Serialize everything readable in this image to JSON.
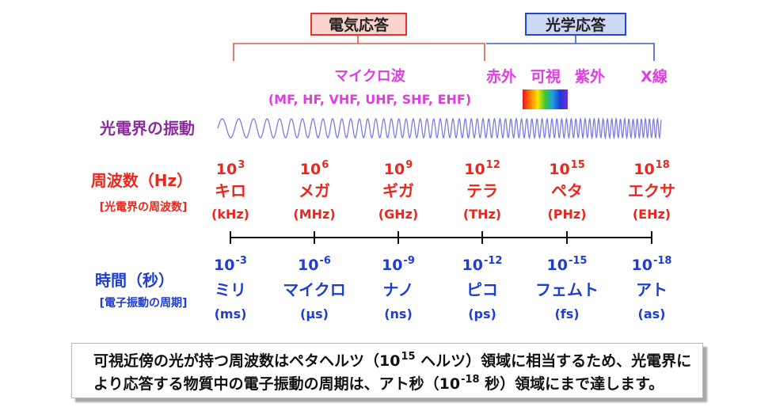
{
  "response_boxes": {
    "electrical": {
      "label": "電気応答",
      "border_color": "#e2322a",
      "fill_color": "#fbd2cd"
    },
    "optical": {
      "label": "光学応答",
      "border_color": "#2445d6",
      "fill_color": "#cdd7f6"
    }
  },
  "regions": {
    "color": "#df3edf",
    "microwave": "マイクロ波",
    "microwave_bands": "(MF, HF, VHF, UHF, SHF, EHF)",
    "infrared": "赤外",
    "visible": "可視",
    "ultraviolet": "紫外",
    "xray": "X線"
  },
  "visible_spectrum": {
    "colors": [
      "#e8141c",
      "#ff7a00",
      "#ffe600",
      "#3cc832",
      "#1aa0e6",
      "#2038d8",
      "#7a2fc8"
    ]
  },
  "oscillation": {
    "label": "光電界の振動",
    "label_color": "#8a2c9c",
    "wave_color": "#7d7be4"
  },
  "frequency": {
    "label": "周波数（Hz）",
    "sublabel": "[光電界の周波数]",
    "color": "#e8281e",
    "columns": [
      {
        "base": "10",
        "exp": "3",
        "prefix": "キロ",
        "unit": "(kHz)"
      },
      {
        "base": "10",
        "exp": "6",
        "prefix": "メガ",
        "unit": "(MHz)"
      },
      {
        "base": "10",
        "exp": "9",
        "prefix": "ギガ",
        "unit": "(GHz)"
      },
      {
        "base": "10",
        "exp": "12",
        "prefix": "テラ",
        "unit": "(THz)"
      },
      {
        "base": "10",
        "exp": "15",
        "prefix": "ペタ",
        "unit": "(PHz)"
      },
      {
        "base": "10",
        "exp": "18",
        "prefix": "エクサ",
        "unit": "(EHz)"
      }
    ]
  },
  "time": {
    "label": "時間（秒）",
    "sublabel": "[電子振動の周期]",
    "color": "#1f3ed0",
    "columns": [
      {
        "base": "10",
        "exp": "-3",
        "prefix": "ミリ",
        "unit": "(ms)"
      },
      {
        "base": "10",
        "exp": "-6",
        "prefix": "マイクロ",
        "unit": "(µs)"
      },
      {
        "base": "10",
        "exp": "-9",
        "prefix": "ナノ",
        "unit": "(ns)"
      },
      {
        "base": "10",
        "exp": "-12",
        "prefix": "ピコ",
        "unit": "(ps)"
      },
      {
        "base": "10",
        "exp": "-15",
        "prefix": "フェムト",
        "unit": "(fs)"
      },
      {
        "base": "10",
        "exp": "-18",
        "prefix": "アト",
        "unit": "(as)"
      }
    ]
  },
  "note": {
    "line1": {
      "before": "可視近傍の光が持つ周波数はペタヘルツ（10",
      "sup": "15",
      "after": " ヘルツ）領域に相当するため、光電界に"
    },
    "line2": {
      "before": "より応答する物質中の電子振動の周期は、アト秒（10",
      "sup": "-18",
      "after": " 秒）領域にまで達します。"
    }
  }
}
